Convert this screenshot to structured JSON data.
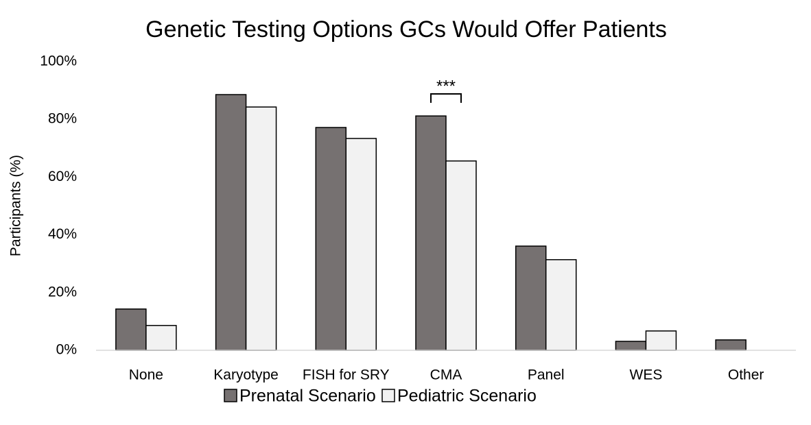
{
  "chart_data": {
    "type": "bar",
    "title": "Genetic Testing Options GCs Would Offer Patients",
    "y_label": "Participants (%)",
    "categories": [
      "None",
      "Karyotype",
      "FISH for SRY",
      "CMA",
      "Panel",
      "WES",
      "Other"
    ],
    "series": [
      {
        "name": "Prenatal Scenario",
        "color": "#767171",
        "values": [
          14.3,
          88.6,
          77.2,
          81.2,
          36.1,
          3.1,
          3.6
        ]
      },
      {
        "name": "Pediatric Scenario",
        "color": "#f2f2f2",
        "values": [
          8.6,
          84.3,
          73.4,
          65.6,
          31.4,
          6.7,
          0
        ]
      }
    ],
    "ylim": [
      0,
      100
    ],
    "yticks": [
      {
        "value": 0,
        "label": "0%"
      },
      {
        "value": 20,
        "label": "20%"
      },
      {
        "value": 40,
        "label": "40%"
      },
      {
        "value": 60,
        "label": "60%"
      },
      {
        "value": 80,
        "label": "80%"
      },
      {
        "value": 100,
        "label": "100%"
      }
    ],
    "annotation": "***",
    "legend": "bottom",
    "grid": false
  }
}
